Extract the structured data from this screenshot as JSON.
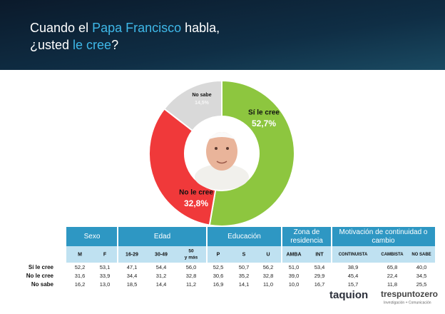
{
  "chart_data": {
    "type": "donut",
    "title_parts": [
      [
        "Cuando el ",
        "Papa Francisco",
        " habla,"
      ],
      [
        "¿usted ",
        "le cree",
        "?"
      ]
    ],
    "categories": [
      "Sí le cree",
      "No le cree",
      "No sabe"
    ],
    "values": [
      52.7,
      32.8,
      14.5
    ],
    "value_labels": [
      "52,7%",
      "32,8%",
      "14,5%"
    ],
    "colors": [
      "#8dc63f",
      "#f0393a",
      "#d9d9d9"
    ]
  },
  "table": {
    "groups": [
      {
        "label": [
          "Sexo"
        ],
        "columns": [
          "M",
          "F"
        ]
      },
      {
        "label": [
          "Edad"
        ],
        "columns": [
          "16-29",
          "30-49",
          [
            "50",
            "y más"
          ]
        ]
      },
      {
        "label": [
          "Educación"
        ],
        "columns": [
          "P",
          "S",
          "U"
        ]
      },
      {
        "label": [
          "Zona de",
          "residencia"
        ],
        "columns": [
          "AMBA",
          "INT"
        ]
      },
      {
        "label": [
          "Motivación de continuidad o",
          "cambio"
        ],
        "columns": [
          "CONTINUISTA",
          "CAMBISTA",
          "NO SABE"
        ]
      }
    ],
    "rows": [
      {
        "label": "Sí le cree",
        "cells": [
          "52,2",
          "53,1",
          "47,1",
          "54,4",
          "56,0",
          "52,5",
          "50,7",
          "56,2",
          "51,0",
          "53,4",
          "38,9",
          "65,8",
          "40,0"
        ]
      },
      {
        "label": "No le cree",
        "cells": [
          "31,6",
          "33,9",
          "34,4",
          "31,2",
          "32,8",
          "30,6",
          "35,2",
          "32,8",
          "39,0",
          "29,9",
          "45,4",
          "22,4",
          "34,5"
        ]
      },
      {
        "label": "No sabe",
        "cells": [
          "16,2",
          "13,0",
          "18,5",
          "14,4",
          "11,2",
          "16,9",
          "14,1",
          "11,0",
          "10,0",
          "16,7",
          "15,7",
          "11,8",
          "25,5"
        ]
      }
    ]
  },
  "footer": {
    "logo1": "taquion",
    "logo2": "trespuntozero",
    "logo2_sub": "Investigación + Comunicación"
  }
}
